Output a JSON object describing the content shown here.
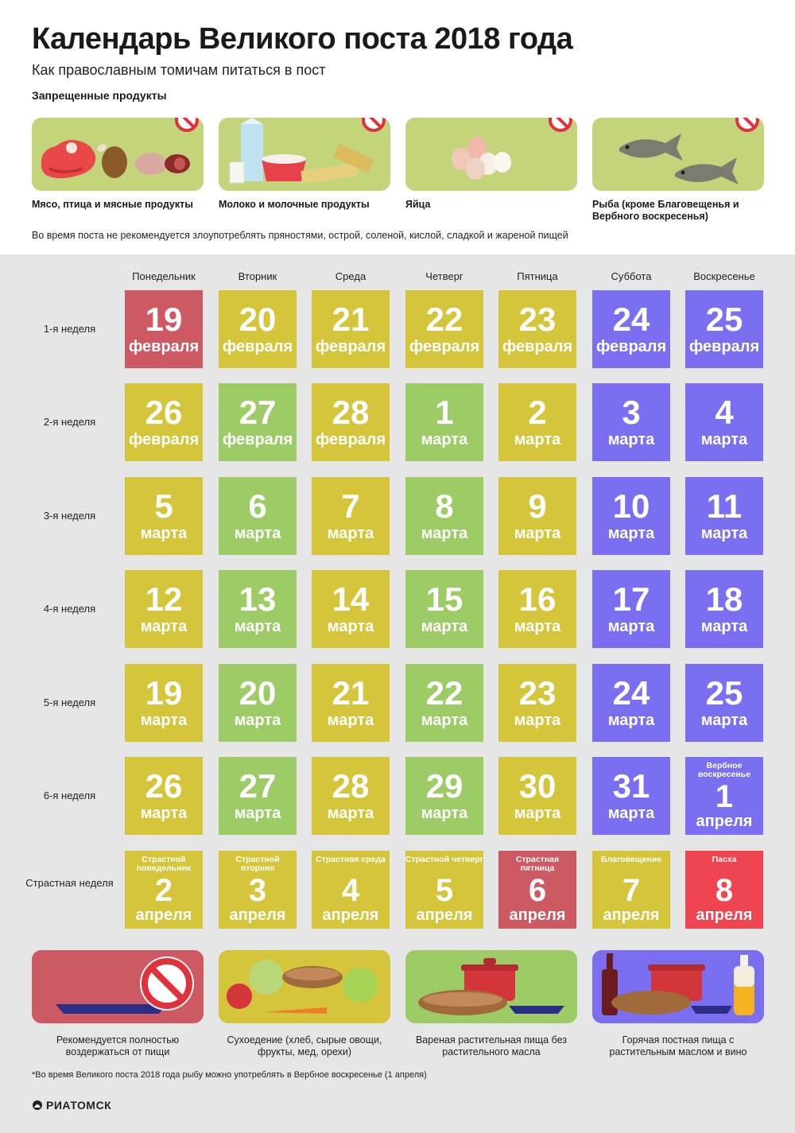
{
  "title": "Календарь Великого поста 2018 года",
  "subtitle": "Как православным томичам питаться в пост",
  "forbidden_heading": "Запрещенные продукты",
  "forbidden": [
    {
      "label": "Мясо, птица и мясные продукты",
      "icon": "meat-icon"
    },
    {
      "label": "Молоко и молочные продукты",
      "icon": "dairy-icon"
    },
    {
      "label": "Яйца",
      "icon": "eggs-icon"
    },
    {
      "label": "Рыба (кроме Благовещенья и Вербного воскресенья)",
      "icon": "fish-icon"
    }
  ],
  "note": "Во время поста не рекомендуется злоупотреблять пряностями, острой, соленой, кислой, сладкой и жареной пищей",
  "days": [
    "Понедельник",
    "Вторник",
    "Среда",
    "Четверг",
    "Пятница",
    "Суббота",
    "Воскресенье"
  ],
  "weeks": [
    {
      "label": "1-я неделя",
      "cells": [
        {
          "num": "19",
          "month": "февраля",
          "color": "#cd5a62"
        },
        {
          "num": "20",
          "month": "февраля",
          "color": "#d4c53a"
        },
        {
          "num": "21",
          "month": "февраля",
          "color": "#d4c53a"
        },
        {
          "num": "22",
          "month": "февраля",
          "color": "#d4c53a"
        },
        {
          "num": "23",
          "month": "февраля",
          "color": "#d4c53a"
        },
        {
          "num": "24",
          "month": "февраля",
          "color": "#7a6ff0"
        },
        {
          "num": "25",
          "month": "февраля",
          "color": "#7a6ff0"
        }
      ]
    },
    {
      "label": "2-я неделя",
      "cells": [
        {
          "num": "26",
          "month": "февраля",
          "color": "#d4c53a"
        },
        {
          "num": "27",
          "month": "февраля",
          "color": "#9dcb65"
        },
        {
          "num": "28",
          "month": "февраля",
          "color": "#d4c53a"
        },
        {
          "num": "1",
          "month": "марта",
          "color": "#9dcb65"
        },
        {
          "num": "2",
          "month": "марта",
          "color": "#d4c53a"
        },
        {
          "num": "3",
          "month": "марта",
          "color": "#7a6ff0"
        },
        {
          "num": "4",
          "month": "марта",
          "color": "#7a6ff0"
        }
      ]
    },
    {
      "label": "3-я неделя",
      "cells": [
        {
          "num": "5",
          "month": "марта",
          "color": "#d4c53a"
        },
        {
          "num": "6",
          "month": "марта",
          "color": "#9dcb65"
        },
        {
          "num": "7",
          "month": "марта",
          "color": "#d4c53a"
        },
        {
          "num": "8",
          "month": "марта",
          "color": "#9dcb65"
        },
        {
          "num": "9",
          "month": "марта",
          "color": "#d4c53a"
        },
        {
          "num": "10",
          "month": "марта",
          "color": "#7a6ff0"
        },
        {
          "num": "11",
          "month": "марта",
          "color": "#7a6ff0"
        }
      ]
    },
    {
      "label": "4-я неделя",
      "cells": [
        {
          "num": "12",
          "month": "марта",
          "color": "#d4c53a"
        },
        {
          "num": "13",
          "month": "марта",
          "color": "#9dcb65"
        },
        {
          "num": "14",
          "month": "марта",
          "color": "#d4c53a"
        },
        {
          "num": "15",
          "month": "марта",
          "color": "#9dcb65"
        },
        {
          "num": "16",
          "month": "марта",
          "color": "#d4c53a"
        },
        {
          "num": "17",
          "month": "марта",
          "color": "#7a6ff0"
        },
        {
          "num": "18",
          "month": "марта",
          "color": "#7a6ff0"
        }
      ]
    },
    {
      "label": "5-я неделя",
      "cells": [
        {
          "num": "19",
          "month": "марта",
          "color": "#d4c53a"
        },
        {
          "num": "20",
          "month": "марта",
          "color": "#9dcb65"
        },
        {
          "num": "21",
          "month": "марта",
          "color": "#d4c53a"
        },
        {
          "num": "22",
          "month": "марта",
          "color": "#9dcb65"
        },
        {
          "num": "23",
          "month": "марта",
          "color": "#d4c53a"
        },
        {
          "num": "24",
          "month": "марта",
          "color": "#7a6ff0"
        },
        {
          "num": "25",
          "month": "марта",
          "color": "#7a6ff0"
        }
      ]
    },
    {
      "label": "6-я неделя",
      "cells": [
        {
          "num": "26",
          "month": "марта",
          "color": "#d4c53a"
        },
        {
          "num": "27",
          "month": "марта",
          "color": "#9dcb65"
        },
        {
          "num": "28",
          "month": "марта",
          "color": "#d4c53a"
        },
        {
          "num": "29",
          "month": "марта",
          "color": "#9dcb65"
        },
        {
          "num": "30",
          "month": "марта",
          "color": "#d4c53a"
        },
        {
          "num": "31",
          "month": "марта",
          "color": "#7a6ff0"
        },
        {
          "num": "1",
          "month": "апреля",
          "color": "#7a6ff0",
          "top": "Вербное воскресенье"
        }
      ]
    },
    {
      "label": "Страстная неделя",
      "cells": [
        {
          "num": "2",
          "month": "апреля",
          "color": "#d4c53a",
          "top": "Страстной понедельник"
        },
        {
          "num": "3",
          "month": "апреля",
          "color": "#d4c53a",
          "top": "Страстной вторник"
        },
        {
          "num": "4",
          "month": "апреля",
          "color": "#d4c53a",
          "top": "Страстная среда"
        },
        {
          "num": "5",
          "month": "апреля",
          "color": "#d4c53a",
          "top": "Страстной четверг"
        },
        {
          "num": "6",
          "month": "апреля",
          "color": "#cd5a62",
          "top": "Страстная пятница"
        },
        {
          "num": "7",
          "month": "апреля",
          "color": "#d4c53a",
          "top": "Благовещение"
        },
        {
          "num": "8",
          "month": "апреля",
          "color": "#ef4451",
          "top": "Пасха"
        }
      ]
    }
  ],
  "legend": [
    {
      "label": "Рекомендуется полностью воздержаться от пищи",
      "color": "#cd5a62",
      "icon": "empty-plate-icon"
    },
    {
      "label": "Сухоедение (хлеб, сырые овощи, фрукты, мед, орехи)",
      "color": "#d4c53a",
      "icon": "raw-food-icon"
    },
    {
      "label": "Вареная растительная пища без растительного масла",
      "color": "#9dcb65",
      "icon": "boiled-food-icon"
    },
    {
      "label": "Горячая постная пища с растительным маслом и вино",
      "color": "#7a6ff0",
      "icon": "hot-food-oil-wine-icon"
    }
  ],
  "footnote": "*Во время Великого поста 2018 года рыбу можно употреблять в Вербное воскресенье (1 апреля)",
  "logo": "РИАТОМСК"
}
